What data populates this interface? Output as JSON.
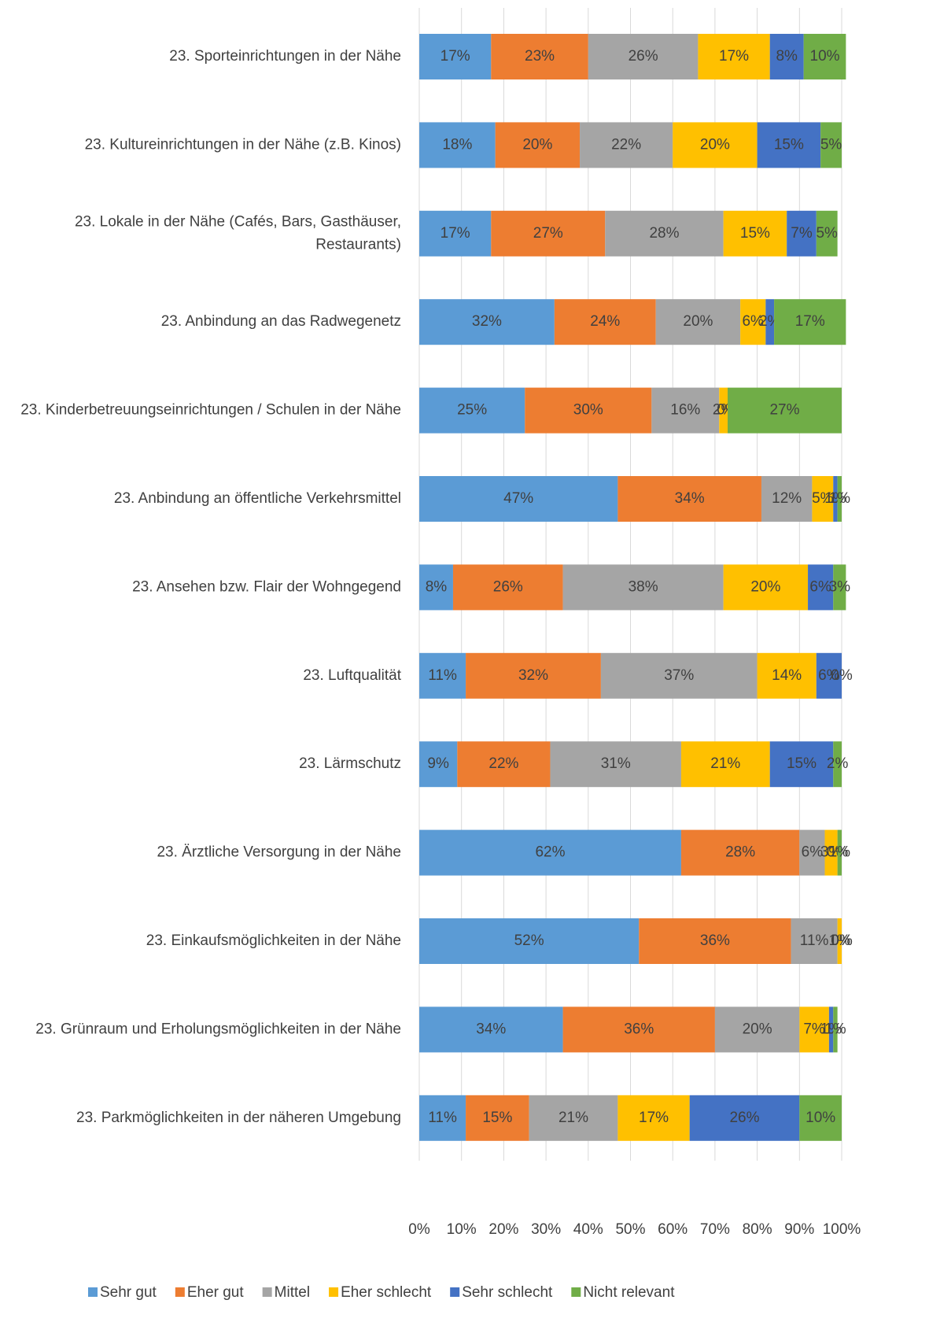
{
  "chart_data": {
    "type": "stacked-bar-horizontal",
    "categories": [
      "23. Sporteinrichtungen in der Nähe",
      "23. Kultureinrichtungen in der Nähe (z.B. Kinos)",
      "23. Lokale in der Nähe (Cafés, Bars, Gasthäuser, Restaurants)",
      "23. Anbindung an das Radwegenetz",
      "23. Kinderbetreuungseinrichtungen / Schulen in der Nähe",
      "23. Anbindung an öffentliche Verkehrsmittel",
      "23. Ansehen bzw. Flair der Wohngegend",
      "23. Luftqualität",
      "23. Lärmschutz",
      "23. Ärztliche Versorgung in der Nähe",
      "23. Einkaufsmöglichkeiten in der Nähe",
      "23. Grünraum und Erholungsmöglichkeiten in der Nähe",
      "23. Parkmöglichkeiten in der näheren Umgebung"
    ],
    "series": [
      {
        "name": "Sehr gut",
        "color": "#5b9bd5",
        "values": [
          17,
          18,
          17,
          32,
          25,
          47,
          8,
          11,
          9,
          62,
          52,
          34,
          11
        ],
        "value_labels": [
          "17%",
          "18%",
          "17%",
          "32%",
          "25%",
          "47%",
          "8%",
          "11%",
          "9%",
          "62%",
          "52%",
          "34%",
          "11%"
        ]
      },
      {
        "name": "Eher gut",
        "color": "#ed7d31",
        "values": [
          23,
          20,
          27,
          24,
          30,
          34,
          26,
          32,
          22,
          28,
          36,
          36,
          15
        ],
        "value_labels": [
          "23%",
          "20%",
          "27%",
          "24%",
          "30%",
          "34%",
          "26%",
          "32%",
          "22%",
          "28%",
          "36%",
          "36%",
          "15%"
        ]
      },
      {
        "name": "Mittel",
        "color": "#a5a5a5",
        "values": [
          26,
          22,
          28,
          20,
          16,
          12,
          38,
          37,
          31,
          6,
          11,
          20,
          21
        ],
        "value_labels": [
          "26%",
          "22%",
          "28%",
          "20%",
          "16%",
          "12%",
          "38%",
          "37%",
          "31%",
          "6%",
          "11%",
          "20%",
          "21%"
        ]
      },
      {
        "name": "Eher schlecht",
        "color": "#ffc000",
        "values": [
          17,
          20,
          15,
          6,
          2,
          5,
          20,
          14,
          21,
          3,
          1,
          7,
          17
        ],
        "value_labels": [
          "17%",
          "20%",
          "15%",
          "6%",
          "2%",
          "5%",
          "20%",
          "14%",
          "21%",
          "3%",
          "1%",
          "7%",
          "17%"
        ]
      },
      {
        "name": "Sehr schlecht",
        "color": "#4472c4",
        "values": [
          8,
          15,
          7,
          2,
          0,
          1,
          6,
          6,
          15,
          0,
          0,
          1,
          26
        ],
        "value_labels": [
          "8%",
          "15%",
          "7%",
          "2%",
          "0%",
          "1%",
          "6%",
          "6%",
          "15%",
          "0%",
          "0%",
          "1%",
          "26%"
        ]
      },
      {
        "name": "Nicht relevant",
        "color": "#70ad47",
        "values": [
          10,
          5,
          5,
          17,
          27,
          1,
          3,
          0,
          2,
          1,
          0,
          1,
          10
        ],
        "value_labels": [
          "10%",
          "5%",
          "5%",
          "17%",
          "27%",
          "1%",
          "3%",
          "0%",
          "2%",
          "1%",
          "0%",
          "1%",
          "10%"
        ]
      }
    ],
    "xlim": [
      0,
      100
    ],
    "xticks": [
      {
        "value": 0,
        "label": "0%"
      },
      {
        "value": 10,
        "label": "10%"
      },
      {
        "value": 20,
        "label": "20%"
      },
      {
        "value": 30,
        "label": "30%"
      },
      {
        "value": 40,
        "label": "40%"
      },
      {
        "value": 50,
        "label": "50%"
      },
      {
        "value": 60,
        "label": "60%"
      },
      {
        "value": 70,
        "label": "70%"
      },
      {
        "value": 80,
        "label": "80%"
      },
      {
        "value": 90,
        "label": "90%"
      },
      {
        "value": 100,
        "label": "100%"
      }
    ],
    "grid": true,
    "legend": "bottom"
  }
}
